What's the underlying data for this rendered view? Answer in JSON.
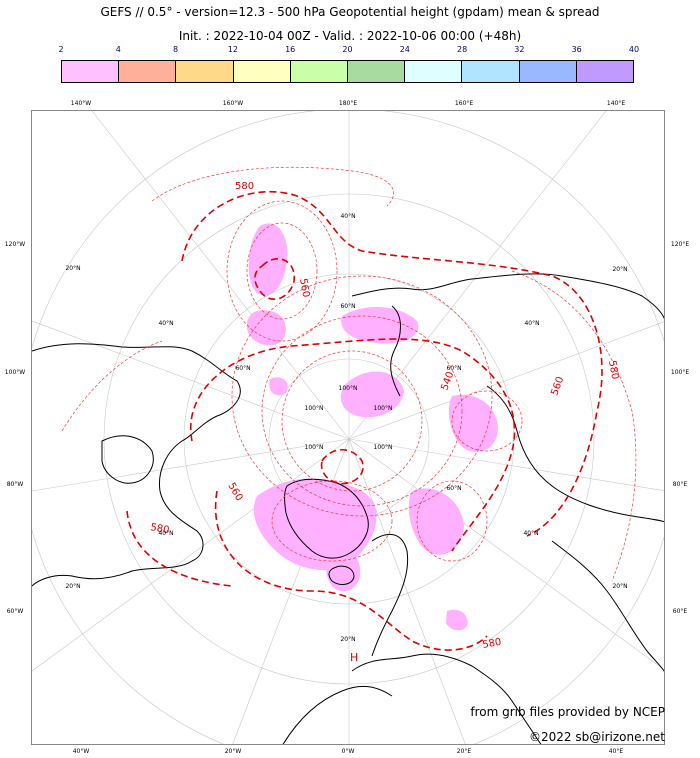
{
  "title_line1": "GEFS // 0.5° - version=12.3 - 500 hPa Geopotential height (gpdam) mean & spread",
  "title_line2": "Init. : 2022-10-04 00Z - Valid. : 2022-10-06 00:00 (+48h)",
  "colorbar": {
    "ticks": [
      "2",
      "4",
      "8",
      "12",
      "16",
      "20",
      "24",
      "28",
      "32",
      "36",
      "40"
    ],
    "colors": [
      "#ffc0ff",
      "#ffb09a",
      "#ffd98a",
      "#ffffc0",
      "#caffaa",
      "#a8dba0",
      "#ddffff",
      "#b0e4ff",
      "#9ab8ff",
      "#c09aff"
    ]
  },
  "map": {
    "top_labels": [
      "140°W",
      "160°W",
      "180°E",
      "160°E",
      "140°E"
    ],
    "bottom_labels": [
      "40°W",
      "20°W",
      "0°W",
      "20°E",
      "40°E"
    ],
    "left_labels": [
      "120°W",
      "100°W",
      "80°W",
      "60°W"
    ],
    "right_labels": [
      "120°E",
      "100°E",
      "80°E",
      "60°E"
    ],
    "lat_labels": [
      "20°N",
      "40°N",
      "60°N",
      "100°N",
      "100°N",
      "100°N",
      "100°N",
      "100°N",
      "60°N",
      "60°N",
      "40°N",
      "40°N",
      "40°N",
      "20°N",
      "20°N",
      "20°N",
      "60°N",
      "40°N",
      "20°N"
    ],
    "contour_labels": [
      "580",
      "560",
      "540",
      "560",
      "560",
      "580",
      "580",
      "580"
    ],
    "low_markers": [
      "H"
    ]
  },
  "credit_line1": "from grib files provided by NCEP",
  "credit_line2": "©2022 sb@irizone.net"
}
